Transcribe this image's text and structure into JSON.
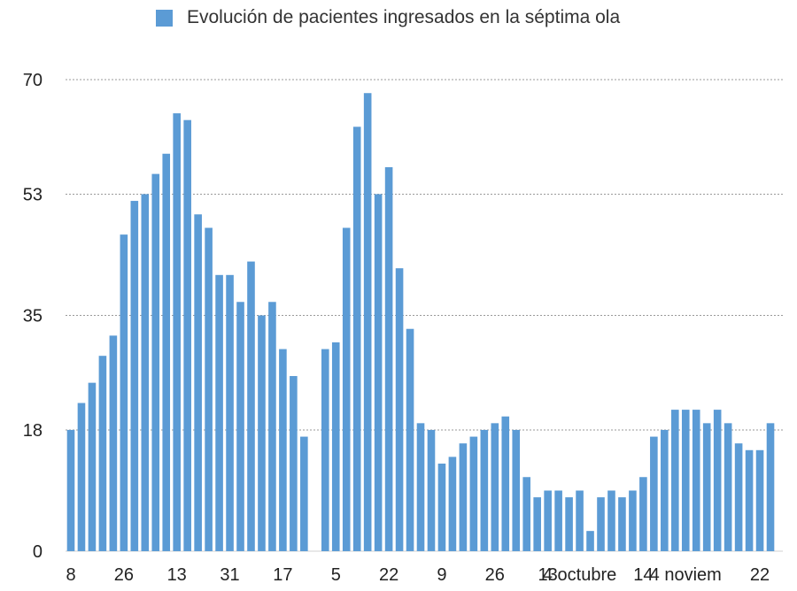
{
  "legend": {
    "label": "Evolución de pacientes ingresados en la séptima ola",
    "swatch_color": "#5b9bd5"
  },
  "chart_data": {
    "type": "bar",
    "series": [
      {
        "name": "Evolución de pacientes ingresados en la séptima ola",
        "color": "#5b9bd5",
        "values": [
          18,
          22,
          25,
          29,
          32,
          47,
          52,
          53,
          56,
          59,
          65,
          64,
          50,
          48,
          41,
          41,
          37,
          43,
          35,
          37,
          30,
          26,
          17,
          0,
          30,
          31,
          48,
          63,
          68,
          53,
          57,
          42,
          33,
          19,
          18,
          13,
          14,
          16,
          17,
          18,
          19,
          20,
          18,
          11,
          8,
          9,
          9,
          8,
          9,
          3,
          8,
          9,
          8,
          9,
          11,
          17,
          18,
          21,
          21,
          21,
          19,
          21,
          19,
          16,
          15,
          15,
          19
        ]
      }
    ],
    "x_tick_labels": [
      {
        "index": 0,
        "label": "8"
      },
      {
        "index": 5,
        "label": "26"
      },
      {
        "index": 10,
        "label": "13"
      },
      {
        "index": 15,
        "label": "31"
      },
      {
        "index": 20,
        "label": "17"
      },
      {
        "index": 25,
        "label": "5"
      },
      {
        "index": 30,
        "label": "22"
      },
      {
        "index": 35,
        "label": "9"
      },
      {
        "index": 40,
        "label": "26"
      },
      {
        "index": 45,
        "label": "13"
      },
      {
        "index": 48,
        "label": "4 octubre"
      },
      {
        "index": 54,
        "label": "14"
      },
      {
        "index": 58,
        "label": "4 noviem"
      },
      {
        "index": 65,
        "label": "22"
      }
    ],
    "y_ticks": [
      0,
      18,
      35,
      53,
      70
    ],
    "ylim": [
      0,
      70
    ],
    "grid": true,
    "legend_position": "top-center"
  }
}
